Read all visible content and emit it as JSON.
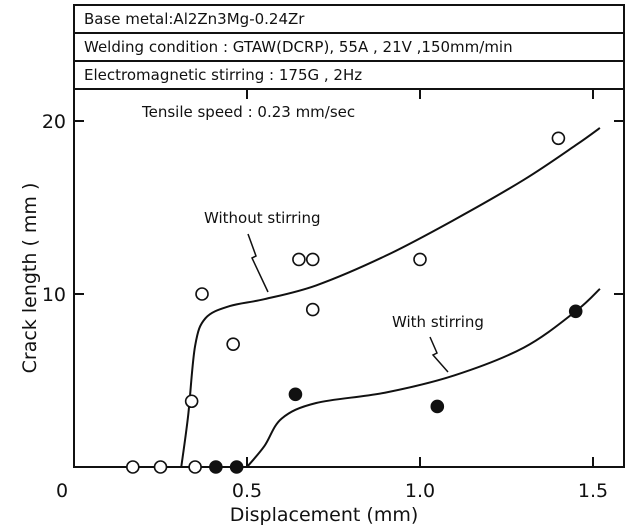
{
  "chart_data": {
    "type": "scatter",
    "header_lines": [
      "Base metal:Al2Zn3Mg-0.24Zr",
      "Welding condition : GTAW(DCRP), 55A , 21V ,150mm/min",
      "Electromagnetic stirring : 175G , 2Hz"
    ],
    "subtitle": "Tensile speed : 0.23 mm/sec",
    "xlabel": "Displacement  (mm)",
    "ylabel": "Crack length ( mm )",
    "xlim": [
      0,
      1.6
    ],
    "ylim": [
      0,
      22
    ],
    "x_ticks": [
      0,
      0.5,
      1.0,
      1.5
    ],
    "x_tick_labels": [
      "0",
      "0.5",
      "1.0",
      "1.5"
    ],
    "y_ticks": [
      10,
      20
    ],
    "y_tick_labels": [
      "10",
      "20"
    ],
    "grid": false,
    "series": [
      {
        "name": "Without stirring",
        "marker": "open-circle",
        "points": [
          [
            0.17,
            0
          ],
          [
            0.25,
            0
          ],
          [
            0.35,
            0
          ],
          [
            0.34,
            3.8
          ],
          [
            0.37,
            10
          ],
          [
            0.46,
            7.1
          ],
          [
            0.65,
            12
          ],
          [
            0.69,
            12
          ],
          [
            0.69,
            9.1
          ],
          [
            1.0,
            12
          ],
          [
            1.4,
            19
          ]
        ]
      },
      {
        "name": "With stirring",
        "marker": "filled-circle",
        "points": [
          [
            0.41,
            0
          ],
          [
            0.47,
            0
          ],
          [
            0.64,
            4.2
          ],
          [
            1.05,
            3.5
          ],
          [
            1.45,
            9
          ]
        ]
      }
    ],
    "fit_curves": [
      {
        "series": "Without stirring",
        "points": [
          [
            0.31,
            0
          ],
          [
            0.33,
            3
          ],
          [
            0.35,
            7
          ],
          [
            0.38,
            8.6
          ],
          [
            0.45,
            9.3
          ],
          [
            0.55,
            9.7
          ],
          [
            0.7,
            10.5
          ],
          [
            0.9,
            12.2
          ],
          [
            1.1,
            14.3
          ],
          [
            1.3,
            16.6
          ],
          [
            1.45,
            18.6
          ],
          [
            1.52,
            19.6
          ]
        ]
      },
      {
        "series": "With stirring",
        "points": [
          [
            0.5,
            0
          ],
          [
            0.55,
            1.2
          ],
          [
            0.6,
            2.8
          ],
          [
            0.7,
            3.7
          ],
          [
            0.9,
            4.3
          ],
          [
            1.1,
            5.3
          ],
          [
            1.3,
            6.9
          ],
          [
            1.45,
            9
          ],
          [
            1.52,
            10.3
          ]
        ]
      }
    ],
    "annotations": [
      "Without stirring",
      "With stirring"
    ]
  }
}
